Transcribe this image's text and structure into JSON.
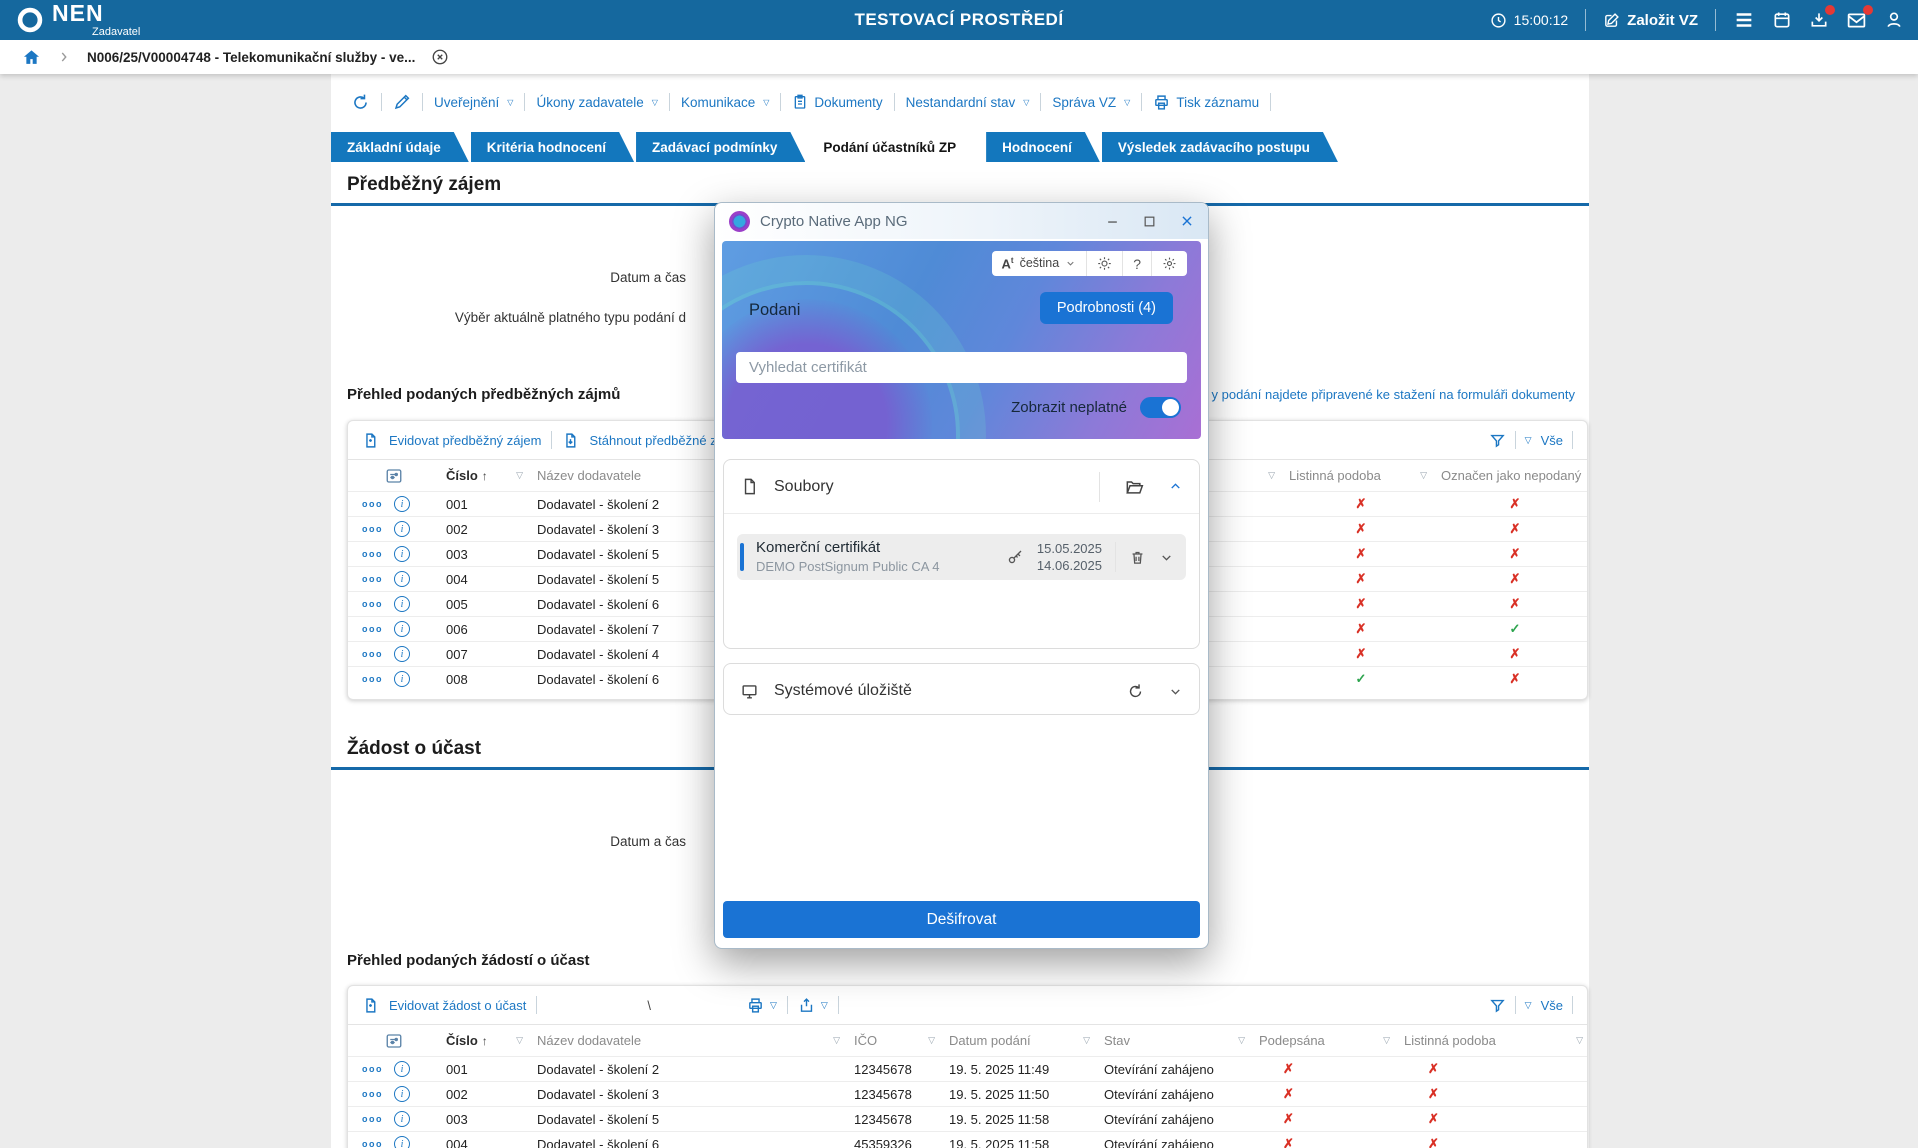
{
  "colors": {
    "topbar": "#15689e",
    "tab_blue": "#1377bd",
    "link_blue": "#1c77c3",
    "accent_blue": "#1a73d4",
    "mark_red": "#d93025",
    "mark_green": "#2da44e",
    "rule_blue": "#1569a9"
  },
  "topbar": {
    "brand": "NEN",
    "brand_sub": "Zadavatel",
    "env_title": "TESTOVACÍ PROSTŘEDÍ",
    "time": "15:00:12",
    "create_vz": "Založit VZ"
  },
  "breadcrumb": {
    "item": "N006/25/V00004748 - Telekomunikační služby - ve..."
  },
  "record_toolbar": {
    "items": [
      {
        "label": "Uveřejnění"
      },
      {
        "label": "Úkony zadavatele"
      },
      {
        "label": "Komunikace"
      },
      {
        "label": "Dokumenty"
      },
      {
        "label": "Nestandardní stav"
      },
      {
        "label": "Správa VZ"
      },
      {
        "label": "Tisk záznamu"
      }
    ]
  },
  "tabs": [
    {
      "label": "Základní údaje"
    },
    {
      "label": "Kritéria hodnocení"
    },
    {
      "label": "Zadávací podmínky"
    },
    {
      "label": "Podání účastníků ZP"
    },
    {
      "label": "Hodnocení"
    },
    {
      "label": "Výsledek zadávacího postupu"
    }
  ],
  "predbezny": {
    "title": "Předběžný zájem",
    "datum_label": "Datum a čas",
    "vyber_label": "Výběr aktuálně platného typu podání d",
    "table_title": "Přehled podaných předběžných zájmů",
    "note": "y podání najdete připravené ke stažení na formuláři dokumenty",
    "action1": "Evidovat předběžný zájem",
    "action2": "Stáhnout předběžné zájmy",
    "vse": "Vše",
    "col_cislo": "Číslo",
    "col_nazev": "Název dodavatele",
    "col_listinna": "Listinná podoba",
    "col_nepodany": "Označen jako nepodaný",
    "rows": [
      {
        "c": "001",
        "n": "Dodavatel - školení 2",
        "l": "x",
        "o": "x"
      },
      {
        "c": "002",
        "n": "Dodavatel - školení 3",
        "l": "x",
        "o": "x"
      },
      {
        "c": "003",
        "n": "Dodavatel - školení 5",
        "l": "x",
        "o": "x"
      },
      {
        "c": "004",
        "n": "Dodavatel - školení 5",
        "l": "x",
        "o": "x"
      },
      {
        "c": "005",
        "n": "Dodavatel - školení 6",
        "l": "x",
        "o": "x"
      },
      {
        "c": "006",
        "n": "Dodavatel - školení 7",
        "l": "x",
        "o": "check"
      },
      {
        "c": "007",
        "n": "Dodavatel - školení 4",
        "l": "x",
        "o": "x"
      },
      {
        "c": "008",
        "n": "Dodavatel - školení 6",
        "l": "check",
        "o": "x"
      }
    ]
  },
  "zadost": {
    "title": "Žádost o účast",
    "datum_label": "Datum a čas",
    "table_title": "Přehled podaných žádostí o účast",
    "action1": "Evidovat žádost o účast",
    "stray": "\\",
    "vse": "Vše",
    "cols": [
      "Číslo",
      "Název dodavatele",
      "IČO",
      "Datum podání",
      "Stav",
      "Podepsána",
      "Listinná podoba"
    ],
    "rows": [
      {
        "c": "001",
        "n": "Dodavatel - školení 2",
        "ico": "12345678",
        "datum": "19. 5. 2025 11:49",
        "stav": "Otevírání zahájeno",
        "p": "x",
        "l": "x"
      },
      {
        "c": "002",
        "n": "Dodavatel - školení 3",
        "ico": "12345678",
        "datum": "19. 5. 2025 11:50",
        "stav": "Otevírání zahájeno",
        "p": "x",
        "l": "x"
      },
      {
        "c": "003",
        "n": "Dodavatel - školení 5",
        "ico": "12345678",
        "datum": "19. 5. 2025 11:58",
        "stav": "Otevírání zahájeno",
        "p": "x",
        "l": "x"
      },
      {
        "c": "004",
        "n": "Dodavatel - školení 6",
        "ico": "45359326",
        "datum": "19. 5. 2025 11:58",
        "stav": "Otevírání zahájeno",
        "p": "x",
        "l": "x"
      }
    ]
  },
  "dialog": {
    "title": "Crypto Native App NG",
    "language": "čeština",
    "language_glyph": "A",
    "help_glyph": "?",
    "context_label": "Podani",
    "details_button": "Podrobnosti (4)",
    "search_placeholder": "Vyhledat certifikát",
    "toggle_label": "Zobrazit neplatné",
    "files_section": "Soubory",
    "cert_name": "Komerční certifikát",
    "cert_issuer": "DEMO PostSignum Public CA 4",
    "cert_valid_from": "15.05.2025",
    "cert_valid_to": "14.06.2025",
    "storage_section": "Systémové úložiště",
    "decrypt_button": "Dešifrovat"
  }
}
